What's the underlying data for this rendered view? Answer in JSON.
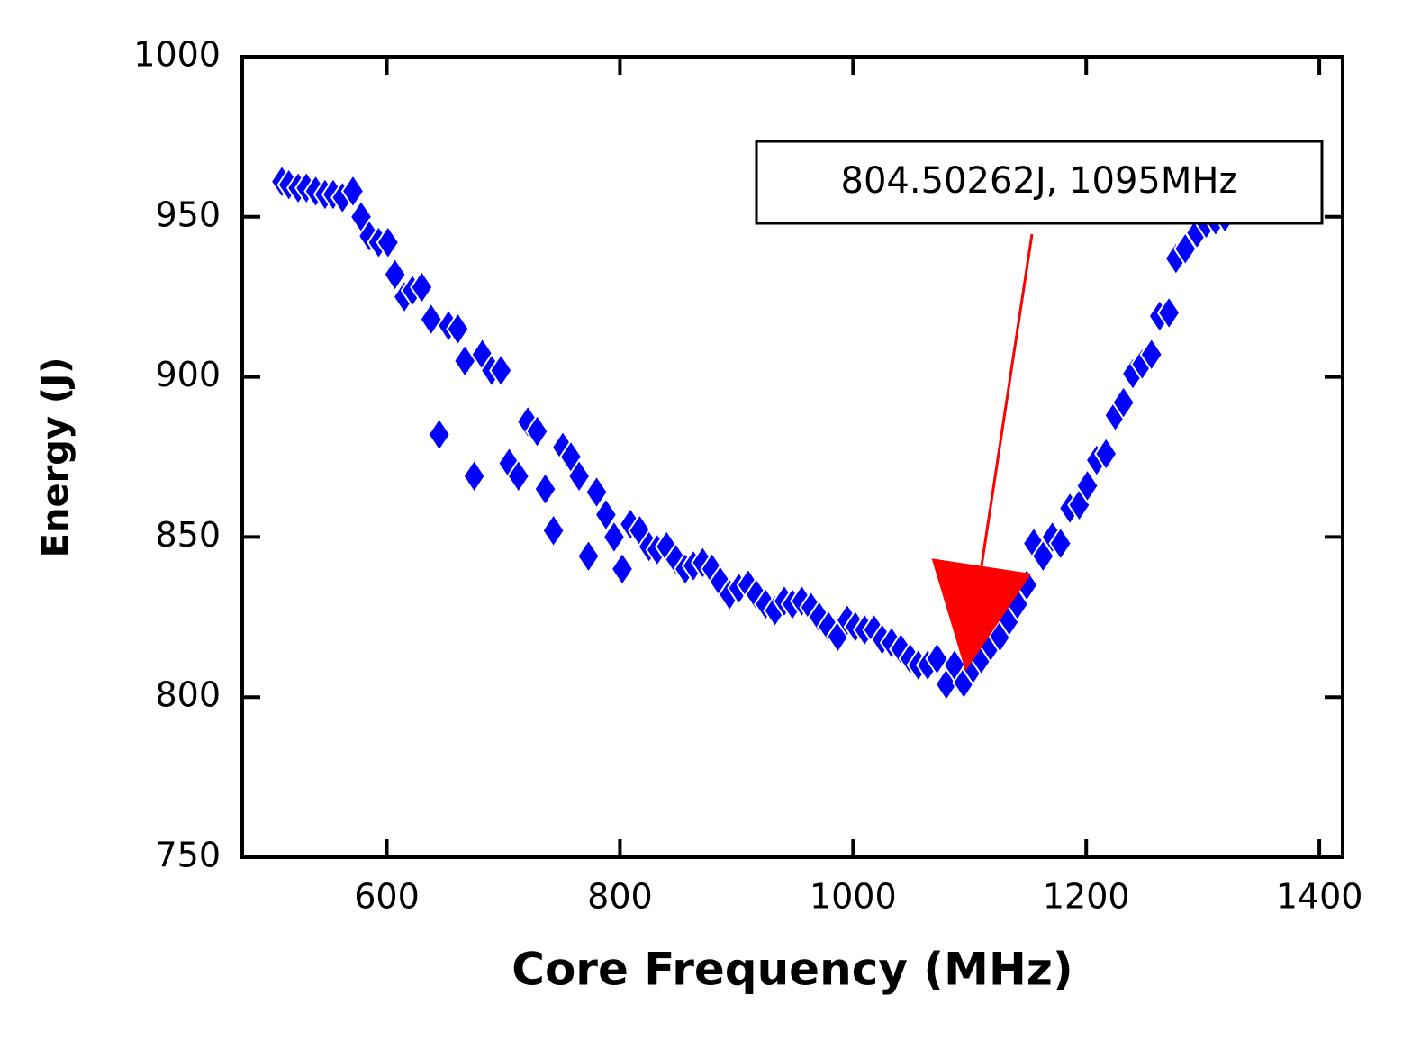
{
  "chart_data": {
    "type": "scatter",
    "xlabel": "Core Frequency (MHz)",
    "ylabel": "Energy (J)",
    "color": "#0000ff",
    "marker": "diamond",
    "x": [
      510,
      516,
      524,
      531,
      539,
      547,
      554,
      562,
      571,
      578,
      585,
      593,
      601,
      607,
      615,
      622,
      630,
      638,
      645,
      653,
      661,
      667,
      675,
      682,
      690,
      698,
      705,
      713,
      721,
      729,
      736,
      743,
      751,
      758,
      765,
      773,
      780,
      788,
      795,
      802,
      809,
      817,
      825,
      832,
      840,
      848,
      856,
      863,
      871,
      879,
      886,
      894,
      902,
      910,
      917,
      925,
      933,
      941,
      948,
      956,
      964,
      971,
      979,
      987,
      995,
      1002,
      1010,
      1018,
      1025,
      1033,
      1041,
      1049,
      1056,
      1064,
      1072,
      1080,
      1087,
      1095,
      1103,
      1110,
      1118,
      1126,
      1134,
      1141,
      1149,
      1155,
      1163,
      1171,
      1178,
      1186,
      1194,
      1201,
      1209,
      1217,
      1225,
      1232,
      1240,
      1248,
      1256,
      1263,
      1271,
      1277,
      1285,
      1295,
      1303,
      1311,
      1319
    ],
    "y": [
      961,
      960,
      959,
      959,
      958,
      957,
      957,
      956,
      958,
      950,
      944,
      942,
      942,
      932,
      925,
      927,
      928,
      918,
      882,
      916,
      915,
      905,
      869,
      907,
      902,
      902,
      873,
      869,
      886,
      883,
      865,
      852,
      878,
      875,
      869,
      844,
      864,
      857,
      850,
      840,
      854,
      852,
      847,
      846,
      847,
      843,
      840,
      841,
      842,
      840,
      836,
      832,
      834,
      835,
      832,
      829,
      827,
      830,
      829,
      830,
      828,
      825,
      822,
      819,
      824,
      822,
      821,
      821,
      818,
      817,
      815,
      812,
      810,
      810,
      812,
      804,
      810,
      804.50262,
      809,
      812,
      816,
      819,
      824,
      829,
      835,
      848,
      844,
      850,
      848,
      859,
      860,
      866,
      874,
      876,
      888,
      892,
      901,
      904,
      907,
      919,
      920,
      937,
      940,
      945,
      948,
      949,
      950
    ],
    "xlim": [
      476,
      1420
    ],
    "ylim": [
      750,
      1000
    ],
    "xticks": [
      600,
      800,
      1000,
      1200,
      1400
    ],
    "yticks": [
      750,
      800,
      850,
      900,
      950,
      1000
    ],
    "annotation": {
      "text": "804.50262J, 1095MHz",
      "xy": [
        1095,
        804.50262
      ],
      "color": "#ff0000"
    }
  }
}
